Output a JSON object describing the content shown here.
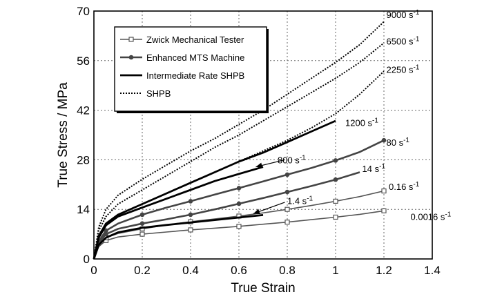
{
  "chart_data": {
    "type": "line",
    "xlabel": "True Strain",
    "ylabel": "True Stress / MPa",
    "xlim": [
      0,
      1.4
    ],
    "ylim": [
      0,
      70
    ],
    "xticks": [
      "0",
      "0.2",
      "0.4",
      "0.6",
      "0.8",
      "1",
      "1.2",
      "1.4"
    ],
    "yticks": [
      "0",
      "14",
      "28",
      "42",
      "56",
      "70"
    ],
    "grid": true,
    "legend_position": "top-left",
    "legend": [
      {
        "label": "Zwick Mechanical Tester",
        "style": "zwick"
      },
      {
        "label": "Enhanced MTS Machine",
        "style": "mts"
      },
      {
        "label": "Intermediate Rate SHPB",
        "style": "irshpb"
      },
      {
        "label": "SHPB",
        "style": "shpb"
      }
    ],
    "series": [
      {
        "rate": "0.0016 s",
        "sup": "-1",
        "style": "zwick",
        "label_pos": [
          1.31,
          12.0
        ],
        "x": [
          0,
          0.02,
          0.05,
          0.1,
          0.2,
          0.3,
          0.4,
          0.5,
          0.6,
          0.7,
          0.8,
          0.9,
          1.0,
          1.1,
          1.2
        ],
        "y": [
          0,
          3.5,
          5.2,
          6.2,
          7.0,
          7.6,
          8.2,
          8.7,
          9.2,
          9.8,
          10.4,
          11.1,
          11.8,
          12.6,
          13.6
        ]
      },
      {
        "rate": "0.16 s",
        "sup": "-1",
        "style": "zwick",
        "label_pos": [
          1.22,
          20.5
        ],
        "x": [
          0,
          0.02,
          0.05,
          0.1,
          0.2,
          0.3,
          0.4,
          0.5,
          0.6,
          0.7,
          0.8,
          0.9,
          1.0,
          1.1,
          1.2
        ],
        "y": [
          0,
          4.0,
          6.0,
          7.2,
          8.5,
          9.6,
          10.5,
          11.3,
          12.1,
          13.0,
          14.0,
          15.1,
          16.3,
          17.6,
          19.2
        ]
      },
      {
        "rate": "14 s",
        "sup": "-1",
        "style": "mts",
        "label_pos": [
          1.11,
          25.5
        ],
        "x": [
          0,
          0.02,
          0.05,
          0.1,
          0.2,
          0.3,
          0.4,
          0.5,
          0.6,
          0.7,
          0.8,
          0.9,
          1.0,
          1.1
        ],
        "y": [
          0,
          4.5,
          7.0,
          8.5,
          10.0,
          11.2,
          12.5,
          14.0,
          15.6,
          17.2,
          18.9,
          20.6,
          22.4,
          24.5
        ]
      },
      {
        "rate": "80 s",
        "sup": "-1",
        "style": "mts",
        "label_pos": [
          1.21,
          33.0
        ],
        "x": [
          0,
          0.02,
          0.05,
          0.1,
          0.2,
          0.3,
          0.4,
          0.5,
          0.6,
          0.7,
          0.8,
          0.9,
          1.0,
          1.1,
          1.2
        ],
        "y": [
          0,
          5.0,
          8.0,
          10.0,
          12.5,
          14.5,
          16.3,
          18.2,
          20.0,
          21.9,
          23.8,
          25.7,
          27.8,
          30.2,
          33.5
        ]
      },
      {
        "rate": "1.4 s",
        "sup": "-1",
        "style": "irshpb",
        "label_pos": [
          0.8,
          16.5
        ],
        "x": [
          0,
          0.02,
          0.05,
          0.1,
          0.2,
          0.3,
          0.4,
          0.5,
          0.6,
          0.7
        ],
        "y": [
          0,
          4.0,
          6.0,
          7.5,
          8.8,
          9.6,
          10.3,
          11.0,
          11.7,
          12.4
        ]
      },
      {
        "rate": "800 s",
        "sup": "-1",
        "style": "irshpb",
        "label_pos": [
          0.76,
          28.0
        ],
        "x": [
          0,
          0.02,
          0.05,
          0.1,
          0.2,
          0.3,
          0.4,
          0.5,
          0.6,
          0.7
        ],
        "y": [
          0,
          6.0,
          9.5,
          12.0,
          14.5,
          17.0,
          19.5,
          22.0,
          24.0,
          26.0
        ]
      },
      {
        "rate": "1200 s",
        "sup": "-1",
        "style": "irshpb",
        "label_pos": [
          1.04,
          38.5
        ],
        "x": [
          0,
          0.02,
          0.05,
          0.1,
          0.2,
          0.3,
          0.4,
          0.5,
          0.6,
          0.7,
          0.8,
          0.9,
          1.0
        ],
        "y": [
          0,
          6.5,
          10.0,
          12.5,
          15.5,
          18.5,
          21.5,
          24.5,
          27.5,
          30.0,
          33.0,
          36.0,
          39.0
        ]
      },
      {
        "rate": "2250 s",
        "sup": "-1",
        "style": "shpb",
        "label_pos": [
          1.21,
          53.5
        ],
        "x": [
          0,
          0.02,
          0.05,
          0.1,
          0.2,
          0.3,
          0.4,
          0.5,
          0.6,
          0.7,
          0.8,
          0.9,
          1.0,
          1.1,
          1.2
        ],
        "y": [
          0,
          6.5,
          10.0,
          12.5,
          15.5,
          18.5,
          21.5,
          24.5,
          27.5,
          30.5,
          33.5,
          37.0,
          41.0,
          46.5,
          53.0
        ]
      },
      {
        "rate": "6500 s",
        "sup": "-1",
        "style": "shpb",
        "label_pos": [
          1.21,
          61.5
        ],
        "x": [
          0,
          0.02,
          0.05,
          0.1,
          0.2,
          0.3,
          0.4,
          0.5,
          0.6,
          0.7,
          0.8,
          0.9,
          1.0,
          1.1,
          1.2
        ],
        "y": [
          0,
          8.0,
          12.0,
          15.5,
          19.5,
          23.5,
          27.5,
          31.5,
          35.0,
          39.0,
          43.0,
          47.0,
          51.0,
          55.5,
          61.0
        ]
      },
      {
        "rate": "9000 s",
        "sup": "-1",
        "style": "shpb",
        "label_pos": [
          1.21,
          69.0
        ],
        "x": [
          0,
          0.02,
          0.05,
          0.1,
          0.2,
          0.3,
          0.4,
          0.5,
          0.6,
          0.7,
          0.8,
          0.9,
          1.0,
          1.1,
          1.2
        ],
        "y": [
          0,
          9.0,
          14.0,
          18.0,
          22.5,
          26.5,
          30.5,
          34.0,
          38.0,
          42.0,
          46.5,
          51.0,
          55.5,
          60.5,
          67.0
        ]
      }
    ],
    "arrows": [
      {
        "from": [
          0.79,
          28.0
        ],
        "to": [
          0.67,
          26.0
        ]
      },
      {
        "from": [
          0.79,
          16.0
        ],
        "to": [
          0.66,
          12.8
        ]
      }
    ],
    "colors": {
      "mts": "#444444",
      "irshpb": "#000000",
      "zwick": "#555555",
      "shpb": "#000000",
      "grid": "#666666"
    }
  }
}
